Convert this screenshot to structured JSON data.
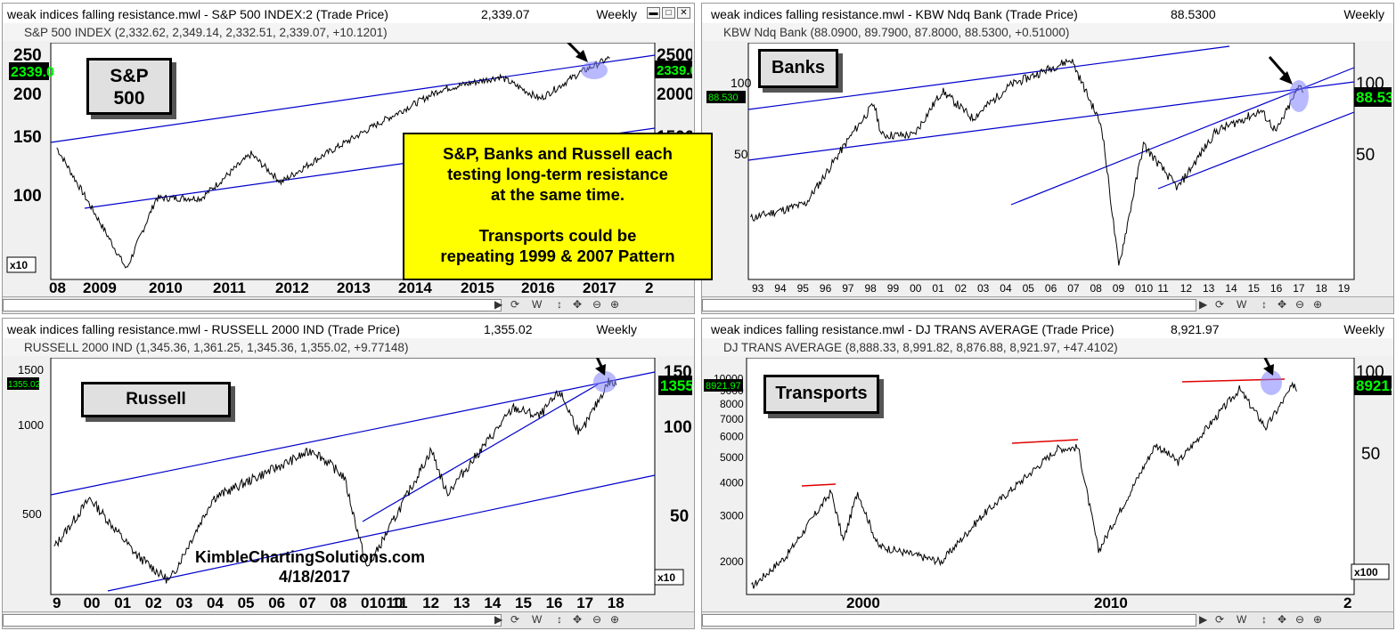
{
  "windows": [
    {
      "id": "sp500",
      "title": "weak indices falling resistance.mwl - S&P 500 INDEX:2 (Trade Price)",
      "last_price": "2,339.07",
      "period": "Weekly",
      "ohlc": "S&P 500 INDEX (2,332.62, 2,349.14, 2,332.51, 2,339.07, +10.1201)",
      "label": "S&P\n500",
      "left_price_tag": "2339.0",
      "right_price_tag": "2339.0"
    },
    {
      "id": "banks",
      "title": "weak indices falling resistance.mwl - KBW Ndq Bank (Trade Price)",
      "last_price": "88.5300",
      "period": "Weekly",
      "ohlc": "KBW Ndq Bank (88.0900, 89.7900, 87.8000, 88.5300, +0.51000)",
      "label": "Banks",
      "left_price_tag": "88.530",
      "right_price_tag": "88.53"
    },
    {
      "id": "russell",
      "title": "weak indices falling resistance.mwl - RUSSELL 2000 IND (Trade Price)",
      "last_price": "1,355.02",
      "period": "Weekly",
      "ohlc": "RUSSELL 2000 IND (1,345.36, 1,361.25, 1,345.36, 1,355.02, +9.77148)",
      "label": "Russell",
      "left_price_tag": "1355.02",
      "right_price_tag": "1355."
    },
    {
      "id": "transports",
      "title": "weak indices falling resistance.mwl - DJ TRANS AVERAGE (Trade Price)",
      "last_price": "8,921.97",
      "period": "Weekly",
      "ohlc": "DJ TRANS AVERAGE (8,888.33, 8,991.82, 8,876.88, 8,921.97, +47.4102)",
      "label": "Transports",
      "left_price_tag": "8921.97",
      "right_price_tag": "8921."
    }
  ],
  "callout": {
    "line1": "S&P, Banks and Russell each",
    "line2": "testing long-term resistance",
    "line3": "at the same time.",
    "line4": "Transports could be",
    "line5": "repeating 1999 & 2007 Pattern"
  },
  "watermark": {
    "site": "KimbleChartingSolutions.com",
    "date": "4/18/2017"
  },
  "scroll_labels": {
    "wave": "W"
  },
  "colors": {
    "callout_bg": "#ffff00",
    "trendline": "#0000cc",
    "resistance_red": "#e00000",
    "highlight": "#8080ff",
    "price_tag_bg": "#000000",
    "price_tag_fg": "#00ff00"
  },
  "chart_data": [
    {
      "type": "line",
      "title": "S&P 500 INDEX",
      "x_ticks": [
        "08",
        "2009",
        "2010",
        "2011",
        "2012",
        "2013",
        "2014",
        "2015",
        "2016",
        "2017",
        "2"
      ],
      "y_ticks_left": [
        "250",
        "200",
        "150",
        "100"
      ],
      "y_ticks_right": [
        "2500",
        "2000",
        "1500"
      ],
      "scale_note": "x10",
      "scale": "log",
      "approx_series": [
        {
          "date": "2008-01",
          "close": 1400
        },
        {
          "date": "2008-10",
          "close": 900
        },
        {
          "date": "2009-03",
          "close": 700
        },
        {
          "date": "2009-09",
          "close": 1050
        },
        {
          "date": "2010-06",
          "close": 1050
        },
        {
          "date": "2011-04",
          "close": 1350
        },
        {
          "date": "2011-10",
          "close": 1150
        },
        {
          "date": "2012-06",
          "close": 1330
        },
        {
          "date": "2013-06",
          "close": 1620
        },
        {
          "date": "2014-06",
          "close": 1950
        },
        {
          "date": "2015-06",
          "close": 2100
        },
        {
          "date": "2016-02",
          "close": 1850
        },
        {
          "date": "2016-10",
          "close": 2150
        },
        {
          "date": "2017-04",
          "close": 2339
        }
      ]
    },
    {
      "type": "line",
      "title": "KBW Ndq Bank",
      "x_ticks": [
        "93",
        "94",
        "95",
        "96",
        "97",
        "98",
        "99",
        "00",
        "01",
        "02",
        "03",
        "04",
        "05",
        "06",
        "07",
        "08",
        "09",
        "010",
        "11",
        "12",
        "13",
        "14",
        "15",
        "16",
        "17",
        "18",
        "19"
      ],
      "y_ticks_left": [
        "100",
        "50"
      ],
      "y_ticks_right": [
        "100",
        "50"
      ],
      "scale": "log",
      "approx_series": [
        {
          "date": "1993-01",
          "close": 28
        },
        {
          "date": "1995-06",
          "close": 32
        },
        {
          "date": "1997-06",
          "close": 60
        },
        {
          "date": "1998-06",
          "close": 80
        },
        {
          "date": "1998-10",
          "close": 60
        },
        {
          "date": "2000-03",
          "close": 60
        },
        {
          "date": "2001-06",
          "close": 90
        },
        {
          "date": "2002-10",
          "close": 70
        },
        {
          "date": "2004-06",
          "close": 95
        },
        {
          "date": "2007-02",
          "close": 120
        },
        {
          "date": "2008-06",
          "close": 65
        },
        {
          "date": "2009-03",
          "close": 18
        },
        {
          "date": "2010-04",
          "close": 55
        },
        {
          "date": "2011-10",
          "close": 37
        },
        {
          "date": "2013-06",
          "close": 62
        },
        {
          "date": "2015-06",
          "close": 75
        },
        {
          "date": "2016-02",
          "close": 62
        },
        {
          "date": "2017-03",
          "close": 97
        },
        {
          "date": "2017-04",
          "close": 88.53
        }
      ]
    },
    {
      "type": "line",
      "title": "RUSSELL 2000 IND",
      "x_ticks": [
        "9",
        "00",
        "01",
        "02",
        "03",
        "04",
        "05",
        "06",
        "07",
        "08",
        "01010",
        "11",
        "12",
        "13",
        "14",
        "15",
        "16",
        "17",
        "18"
      ],
      "y_ticks_left": [
        "1500",
        "1000",
        "500"
      ],
      "y_ticks_right": [
        "150",
        "100",
        "50"
      ],
      "scale_note": "x10",
      "scale": "log",
      "approx_series": [
        {
          "date": "1999-01",
          "close": 420
        },
        {
          "date": "2000-03",
          "close": 600
        },
        {
          "date": "2001-09",
          "close": 400
        },
        {
          "date": "2002-10",
          "close": 330
        },
        {
          "date": "2004-03",
          "close": 600
        },
        {
          "date": "2007-06",
          "close": 850
        },
        {
          "date": "2008-06",
          "close": 700
        },
        {
          "date": "2009-03",
          "close": 360
        },
        {
          "date": "2011-04",
          "close": 850
        },
        {
          "date": "2011-10",
          "close": 620
        },
        {
          "date": "2013-12",
          "close": 1150
        },
        {
          "date": "2014-10",
          "close": 1080
        },
        {
          "date": "2015-06",
          "close": 1290
        },
        {
          "date": "2016-02",
          "close": 950
        },
        {
          "date": "2017-01",
          "close": 1390
        },
        {
          "date": "2017-04",
          "close": 1355
        }
      ]
    },
    {
      "type": "line",
      "title": "DJ TRANS AVERAGE",
      "x_ticks": [
        "2000",
        "2010",
        "2"
      ],
      "y_ticks_left": [
        "10000",
        "9000",
        "8000",
        "7000",
        "6000",
        "5000",
        "4000",
        "3000",
        "2000"
      ],
      "y_ticks_right": [
        "100",
        "50"
      ],
      "scale_note": "x100",
      "scale": "log",
      "approx_series": [
        {
          "date": "1995-01",
          "close": 1600
        },
        {
          "date": "1996-06",
          "close": 2100
        },
        {
          "date": "1998-04",
          "close": 3700
        },
        {
          "date": "1998-10",
          "close": 2400
        },
        {
          "date": "1999-05",
          "close": 3700
        },
        {
          "date": "2000-03",
          "close": 2300
        },
        {
          "date": "2002-10",
          "close": 2000
        },
        {
          "date": "2004-06",
          "close": 3000
        },
        {
          "date": "2007-07",
          "close": 5400
        },
        {
          "date": "2008-05",
          "close": 5450
        },
        {
          "date": "2009-03",
          "close": 2200
        },
        {
          "date": "2011-07",
          "close": 5600
        },
        {
          "date": "2012-06",
          "close": 4800
        },
        {
          "date": "2014-12",
          "close": 9100
        },
        {
          "date": "2016-01",
          "close": 6500
        },
        {
          "date": "2017-03",
          "close": 9600
        },
        {
          "date": "2017-04",
          "close": 8922
        }
      ]
    }
  ]
}
